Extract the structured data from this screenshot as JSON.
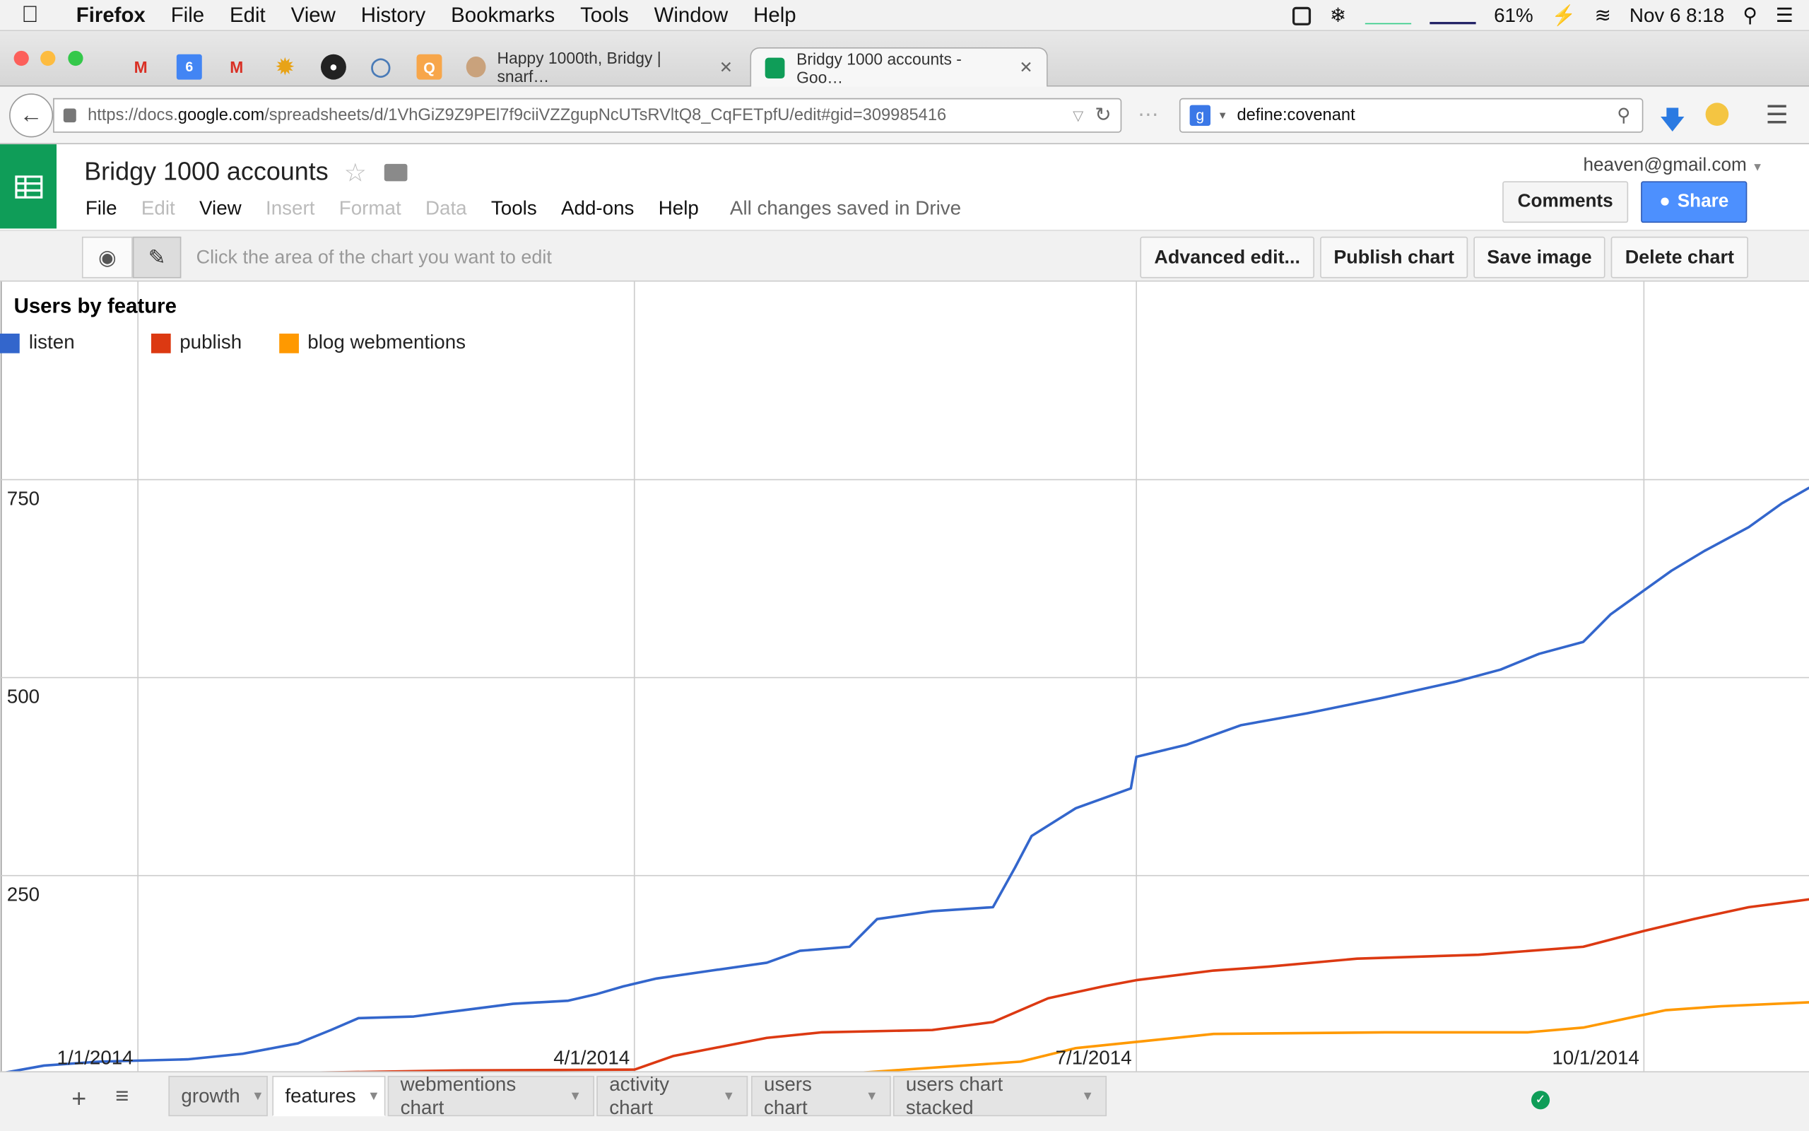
{
  "os_menu": {
    "app": "Firefox",
    "items": [
      "File",
      "Edit",
      "View",
      "History",
      "Bookmarks",
      "Tools",
      "Window",
      "Help"
    ],
    "battery": "61%",
    "datetime": "Nov 6  8:18"
  },
  "browser": {
    "tabs": [
      {
        "title": "Happy 1000th, Bridgy | snarf…"
      },
      {
        "title": "Bridgy 1000 accounts - Goo…"
      }
    ],
    "url": {
      "prefix": "https://docs.",
      "domain": "google.com",
      "rest": "/spreadsheets/d/1VhGiZ9Z9PEl7f9ciiVZZgupNcUTsRVltQ8_CqFETpfU/edit#gid=309985416"
    },
    "search_value": "define:covenant",
    "calendar_badge": "6"
  },
  "sheets": {
    "title": "Bridgy 1000 accounts",
    "menu": [
      {
        "label": "File",
        "enabled": true
      },
      {
        "label": "Edit",
        "enabled": false
      },
      {
        "label": "View",
        "enabled": true
      },
      {
        "label": "Insert",
        "enabled": false
      },
      {
        "label": "Format",
        "enabled": false
      },
      {
        "label": "Data",
        "enabled": false
      },
      {
        "label": "Tools",
        "enabled": true
      },
      {
        "label": "Add-ons",
        "enabled": true
      },
      {
        "label": "Help",
        "enabled": true
      }
    ],
    "save_status": "All changes saved in Drive",
    "account": "heaven@gmail.com",
    "comments_label": "Comments",
    "share_label": "Share"
  },
  "chart_toolbar": {
    "hint": "Click the area of the chart you want to edit",
    "advanced_edit": "Advanced edit...",
    "publish_chart": "Publish chart",
    "save_image": "Save image",
    "delete_chart": "Delete chart"
  },
  "chart_data": {
    "type": "line",
    "title": "Users by feature",
    "xlabel": "",
    "ylabel": "",
    "x_ticks": [
      "1/1/2014",
      "4/1/2014",
      "7/1/2014",
      "10/1/2014"
    ],
    "y_ticks": [
      250,
      500,
      750
    ],
    "ylim": [
      0,
      1000
    ],
    "xlim": [
      "2013-12-07",
      "2014-10-31"
    ],
    "grid": true,
    "legend": "top-left",
    "series": [
      {
        "name": "listen",
        "color": "#3366cc",
        "points": [
          [
            "2013-12-07",
            0
          ],
          [
            "2013-12-15",
            10
          ],
          [
            "2013-12-25",
            15
          ],
          [
            "2014-01-10",
            18
          ],
          [
            "2014-01-20",
            25
          ],
          [
            "2014-01-30",
            38
          ],
          [
            "2014-02-05",
            55
          ],
          [
            "2014-02-10",
            70
          ],
          [
            "2014-02-20",
            72
          ],
          [
            "2014-03-01",
            80
          ],
          [
            "2014-03-10",
            88
          ],
          [
            "2014-03-20",
            92
          ],
          [
            "2014-03-25",
            100
          ],
          [
            "2014-03-30",
            110
          ],
          [
            "2014-04-05",
            120
          ],
          [
            "2014-04-15",
            130
          ],
          [
            "2014-04-25",
            140
          ],
          [
            "2014-05-01",
            155
          ],
          [
            "2014-05-10",
            160
          ],
          [
            "2014-05-15",
            195
          ],
          [
            "2014-05-25",
            205
          ],
          [
            "2014-06-05",
            210
          ],
          [
            "2014-06-09",
            260
          ],
          [
            "2014-06-12",
            300
          ],
          [
            "2014-06-20",
            335
          ],
          [
            "2014-06-30",
            360
          ],
          [
            "2014-07-01",
            400
          ],
          [
            "2014-07-10",
            415
          ],
          [
            "2014-07-20",
            440
          ],
          [
            "2014-08-01",
            455
          ],
          [
            "2014-08-15",
            475
          ],
          [
            "2014-08-28",
            495
          ],
          [
            "2014-09-05",
            510
          ],
          [
            "2014-09-12",
            530
          ],
          [
            "2014-09-20",
            545
          ],
          [
            "2014-09-25",
            580
          ],
          [
            "2014-10-01",
            610
          ],
          [
            "2014-10-06",
            635
          ],
          [
            "2014-10-12",
            660
          ],
          [
            "2014-10-20",
            690
          ],
          [
            "2014-10-26",
            720
          ],
          [
            "2014-10-31",
            740
          ]
        ]
      },
      {
        "name": "publish",
        "color": "#dc3912",
        "points": [
          [
            "2013-12-07",
            0
          ],
          [
            "2014-02-01",
            1
          ],
          [
            "2014-03-01",
            4
          ],
          [
            "2014-04-01",
            5
          ],
          [
            "2014-04-08",
            22
          ],
          [
            "2014-04-25",
            45
          ],
          [
            "2014-05-05",
            52
          ],
          [
            "2014-05-25",
            55
          ],
          [
            "2014-06-05",
            65
          ],
          [
            "2014-06-15",
            95
          ],
          [
            "2014-06-25",
            110
          ],
          [
            "2014-07-01",
            118
          ],
          [
            "2014-07-15",
            130
          ],
          [
            "2014-07-25",
            135
          ],
          [
            "2014-08-10",
            145
          ],
          [
            "2014-09-01",
            150
          ],
          [
            "2014-09-20",
            160
          ],
          [
            "2014-10-01",
            180
          ],
          [
            "2014-10-10",
            195
          ],
          [
            "2014-10-20",
            210
          ],
          [
            "2014-10-31",
            220
          ]
        ]
      },
      {
        "name": "blog webmentions",
        "color": "#ff9900",
        "points": [
          [
            "2013-12-07",
            0
          ],
          [
            "2014-05-10",
            0
          ],
          [
            "2014-05-20",
            5
          ],
          [
            "2014-06-10",
            15
          ],
          [
            "2014-06-20",
            32
          ],
          [
            "2014-07-01",
            40
          ],
          [
            "2014-07-15",
            50
          ],
          [
            "2014-08-15",
            52
          ],
          [
            "2014-09-10",
            52
          ],
          [
            "2014-09-20",
            58
          ],
          [
            "2014-10-05",
            80
          ],
          [
            "2014-10-15",
            85
          ],
          [
            "2014-10-31",
            90
          ]
        ]
      }
    ]
  },
  "sheet_tabs": {
    "add_label": "+",
    "tabs": [
      {
        "label": "growth",
        "active": false
      },
      {
        "label": "features",
        "active": true
      },
      {
        "label": "webmentions chart",
        "active": false
      },
      {
        "label": "activity chart",
        "active": false
      },
      {
        "label": "users chart",
        "active": false
      },
      {
        "label": "users chart stacked",
        "active": false
      }
    ]
  }
}
